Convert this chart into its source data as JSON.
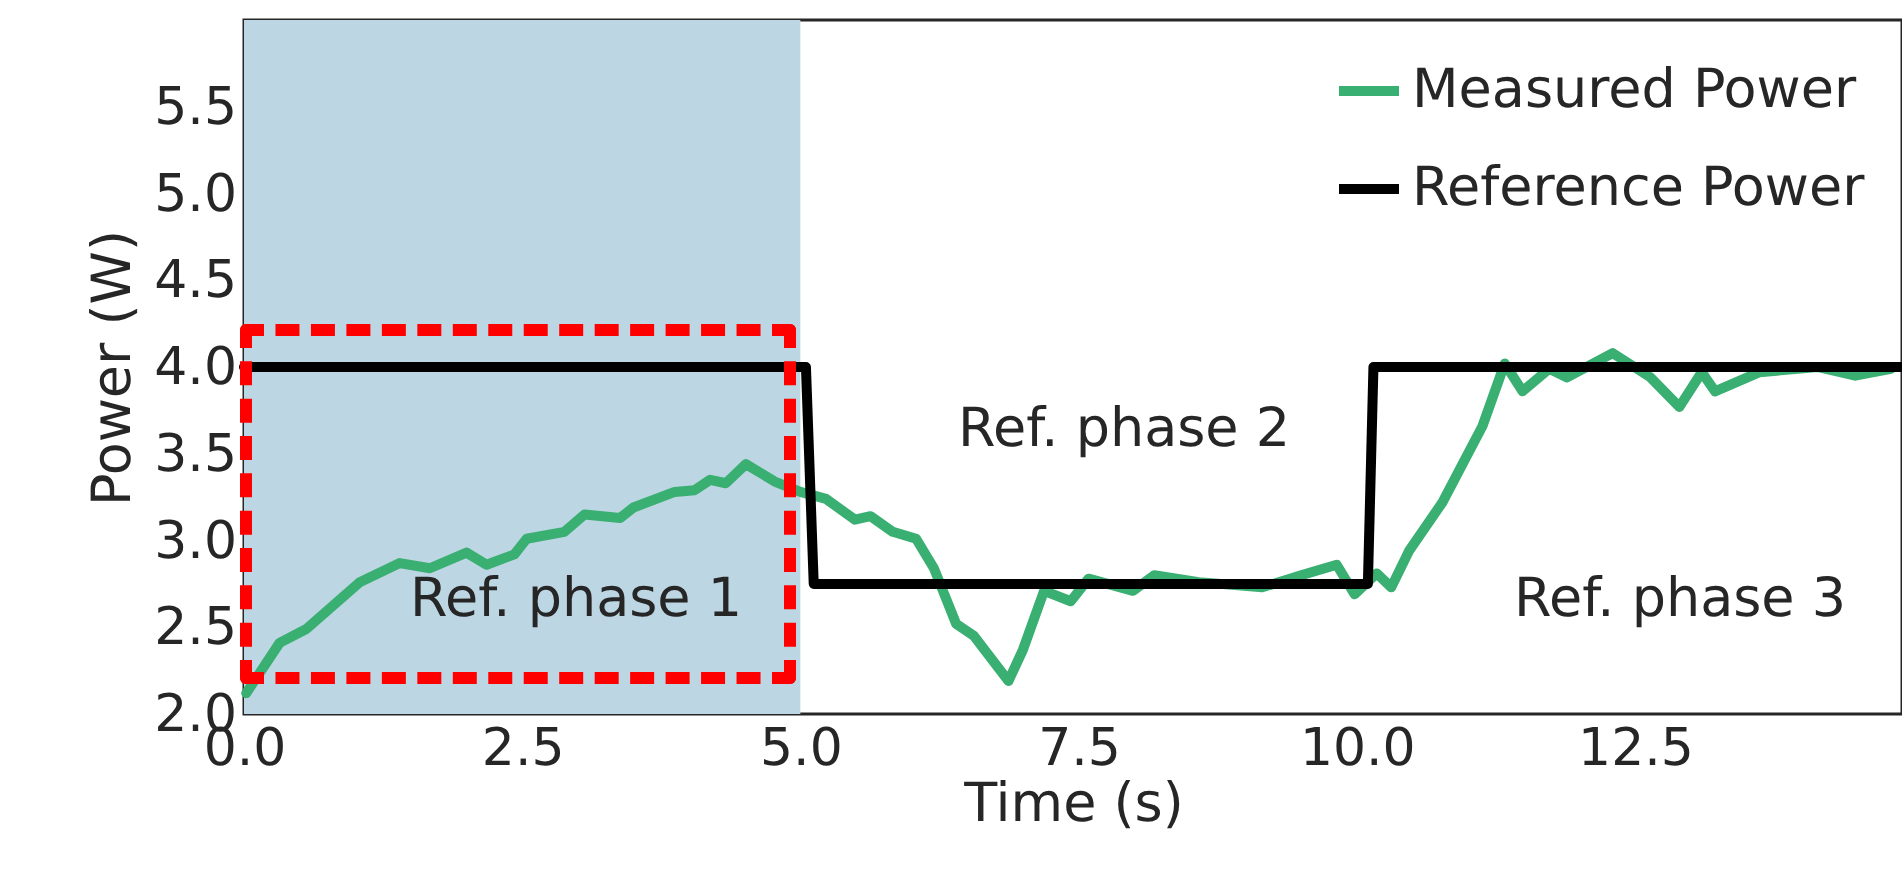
{
  "chart_data": {
    "type": "line",
    "xlabel": "Time (s)",
    "ylabel": "Power (W)",
    "xlim": [
      0,
      14.9
    ],
    "ylim": [
      2.0,
      6.0
    ],
    "xticks": [
      {
        "value": 0,
        "label": "0.0"
      },
      2.5,
      {
        "value": 5,
        "label": "5.0"
      },
      7.5,
      {
        "value": 10,
        "label": "10.0"
      },
      12.5
    ],
    "yticks": [
      {
        "value": 2,
        "label": "2.0"
      },
      2.5,
      {
        "value": 3,
        "label": "3.0"
      },
      3.5,
      {
        "value": 4,
        "label": "4.0"
      },
      4.5,
      {
        "value": 5,
        "label": "5.0"
      },
      5.5
    ],
    "grid": false,
    "legend": "top right",
    "bands": [
      {
        "axis": "x",
        "from": 0,
        "to": 5.0,
        "color": "#bdd6e3"
      }
    ],
    "annotations": [
      "Ref. phase 1",
      "Ref. phase 2",
      "Ref. phase 3"
    ],
    "series": [
      {
        "name": "Measured Power",
        "color": "#3aaf72",
        "x": [
          0.02,
          0.32,
          0.56,
          1.04,
          1.4,
          1.67,
          2.0,
          2.18,
          2.43,
          2.54,
          2.88,
          3.06,
          3.38,
          3.5,
          3.87,
          4.05,
          4.19,
          4.33,
          4.51,
          4.77,
          5.0,
          5.23,
          5.49,
          5.63,
          5.83,
          6.04,
          6.2,
          6.4,
          6.56,
          6.87,
          7.0,
          7.19,
          7.43,
          7.59,
          7.99,
          8.18,
          8.58,
          9.15,
          9.5,
          9.82,
          9.98,
          10.18,
          10.31,
          10.47,
          10.77,
          11.13,
          11.33,
          11.49,
          11.73,
          11.89,
          12.3,
          12.64,
          12.9,
          13.1,
          13.22,
          13.62,
          14.14,
          14.48,
          14.8
        ],
        "values": [
          2.12,
          2.41,
          2.49,
          2.76,
          2.87,
          2.84,
          2.93,
          2.86,
          2.92,
          3.01,
          3.05,
          3.15,
          3.13,
          3.19,
          3.28,
          3.29,
          3.35,
          3.33,
          3.44,
          3.34,
          3.28,
          3.24,
          3.12,
          3.14,
          3.05,
          3.01,
          2.84,
          2.52,
          2.45,
          2.19,
          2.37,
          2.71,
          2.65,
          2.78,
          2.71,
          2.8,
          2.76,
          2.73,
          2.8,
          2.86,
          2.69,
          2.81,
          2.73,
          2.94,
          3.22,
          3.66,
          4.02,
          3.86,
          3.99,
          3.94,
          4.08,
          3.94,
          3.77,
          3.97,
          3.86,
          3.97,
          4.0,
          3.95,
          3.99
        ]
      },
      {
        "name": "Reference Power",
        "color": "#000000",
        "x": [
          0,
          5.05,
          5.12,
          10.1,
          10.15,
          14.9
        ],
        "values": [
          4.0,
          4.0,
          2.75,
          2.75,
          4.0,
          4.0
        ]
      }
    ]
  }
}
